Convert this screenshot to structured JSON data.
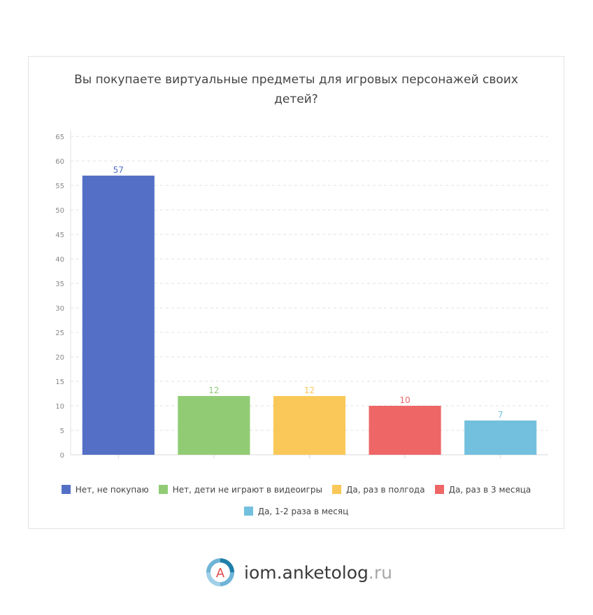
{
  "chart_data": {
    "type": "bar",
    "title": "Вы покупаете виртуальные предметы для игровых персонажей своих детей?",
    "categories": [
      "Нет, не покупаю",
      "Нет, дети не играют в видеоигры",
      "Да, раз в полгода",
      "Да, раз в 3 месяца",
      "Да, 1-2 раза в месяц"
    ],
    "values": [
      57,
      12,
      12,
      10,
      7
    ],
    "colors": [
      "#5470c6",
      "#91cc75",
      "#fac858",
      "#ee6666",
      "#73c0de"
    ],
    "ylim": [
      0,
      65
    ],
    "yticks": [
      0,
      5,
      10,
      15,
      20,
      25,
      30,
      35,
      40,
      45,
      50,
      55,
      60,
      65
    ],
    "grid": true,
    "legend_position": "bottom"
  },
  "logo": {
    "letter": "A",
    "name": "iom.anketolog",
    "tld": ".ru"
  }
}
